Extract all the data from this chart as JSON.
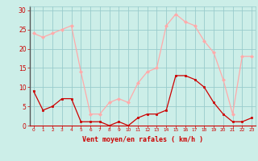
{
  "hours": [
    0,
    1,
    2,
    3,
    4,
    5,
    6,
    7,
    8,
    9,
    10,
    11,
    12,
    13,
    14,
    15,
    16,
    17,
    18,
    19,
    20,
    21,
    22,
    23
  ],
  "vent_moyen": [
    9,
    4,
    5,
    7,
    7,
    1,
    1,
    1,
    0,
    1,
    0,
    2,
    3,
    3,
    4,
    13,
    13,
    12,
    10,
    6,
    3,
    1,
    1,
    2
  ],
  "rafales": [
    24,
    23,
    24,
    25,
    26,
    14,
    3,
    3,
    6,
    7,
    6,
    11,
    14,
    15,
    26,
    29,
    27,
    26,
    22,
    19,
    12,
    3,
    18,
    18
  ],
  "color_moyen": "#cc0000",
  "color_rafales": "#ffaaaa",
  "bg_color": "#cceee8",
  "grid_color": "#99cccc",
  "xlabel": "Vent moyen/en rafales ( km/h )",
  "ylabel_ticks": [
    0,
    5,
    10,
    15,
    20,
    25,
    30
  ],
  "ylim": [
    0,
    31
  ],
  "xlim": [
    0,
    23
  ],
  "tick_color": "#cc0000"
}
